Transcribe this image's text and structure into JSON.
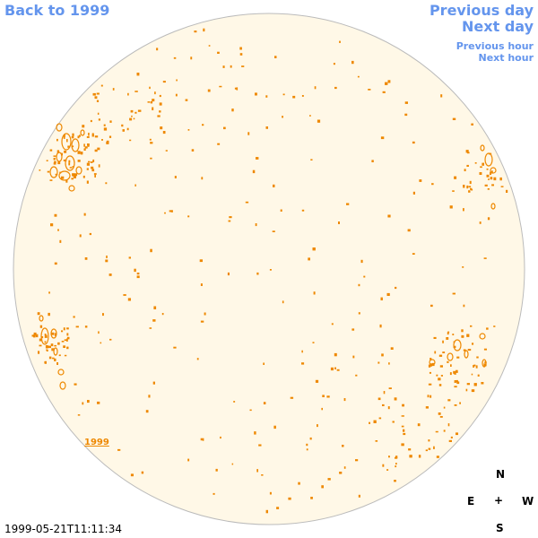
{
  "nav": {
    "back": "Back to 1999",
    "previous_day": "Previous day",
    "next_day": "Next day",
    "previous_hour": "Previous hour",
    "next_hour": "Next hour"
  },
  "map": {
    "year_label": "1999",
    "timestamp": "1999-05-21T11:11:34"
  },
  "compass": {
    "north": "N",
    "south": "S",
    "east": "E",
    "west": "W",
    "center": "+"
  },
  "colors": {
    "disk_fill": "#fff8e7",
    "disk_stroke": "#bbbbbb",
    "contour": "#ee8800",
    "link": "#6495ed"
  }
}
